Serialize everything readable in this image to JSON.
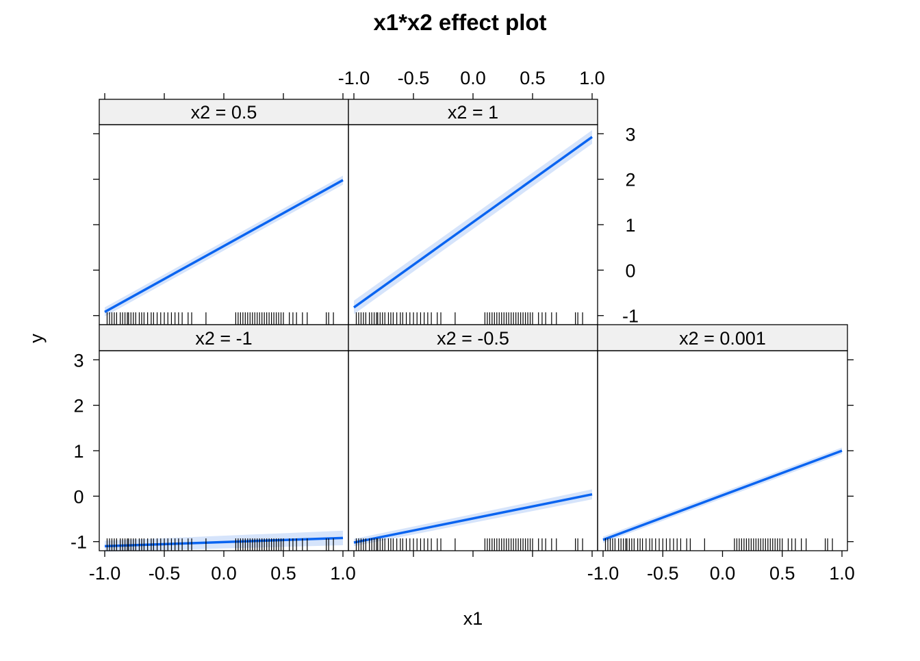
{
  "chart_data": {
    "type": "line",
    "title": "x1*x2 effect plot",
    "xlabel": "x1",
    "ylabel": "y",
    "xlim": [
      -1.0,
      1.0
    ],
    "ylim": [
      -1.2,
      3.2
    ],
    "x_ticks": [
      -1.0,
      -0.5,
      0.0,
      0.5,
      1.0
    ],
    "x_tick_labels": [
      "-1.0",
      "-0.5",
      "0.0",
      "0.5",
      "1.0"
    ],
    "y_ticks": [
      -1,
      0,
      1,
      2,
      3
    ],
    "y_tick_labels": [
      "-1",
      "0",
      "1",
      "2",
      "3"
    ],
    "line_color": "#0A64F0",
    "band_color": "#D6E4FB",
    "strip_color": "#F0F0F0",
    "rug_x": [
      -0.98,
      -0.96,
      -0.94,
      -0.92,
      -0.9,
      -0.87,
      -0.85,
      -0.83,
      -0.81,
      -0.8,
      -0.78,
      -0.76,
      -0.74,
      -0.71,
      -0.69,
      -0.67,
      -0.64,
      -0.61,
      -0.59,
      -0.56,
      -0.53,
      -0.5,
      -0.47,
      -0.44,
      -0.41,
      -0.38,
      -0.35,
      -0.3,
      -0.27,
      -0.15,
      0.1,
      0.12,
      0.14,
      0.16,
      0.18,
      0.2,
      0.22,
      0.24,
      0.26,
      0.28,
      0.3,
      0.32,
      0.34,
      0.36,
      0.38,
      0.4,
      0.42,
      0.44,
      0.46,
      0.48,
      0.5,
      0.55,
      0.58,
      0.61,
      0.66,
      0.7,
      0.86,
      0.88,
      0.92
    ],
    "panels": [
      {
        "strip": "x2 = 0.5",
        "x": [
          -1,
          1
        ],
        "y": [
          -0.92,
          1.98
        ],
        "lower": [
          -1.02,
          1.88
        ],
        "upper": [
          -0.82,
          2.08
        ]
      },
      {
        "strip": "x2 = 1",
        "x": [
          -1,
          1
        ],
        "y": [
          -0.82,
          2.93
        ],
        "lower": [
          -0.97,
          2.78
        ],
        "upper": [
          -0.67,
          3.08
        ]
      },
      {
        "strip": "x2 = -1",
        "x": [
          -1,
          1
        ],
        "y": [
          -1.1,
          -0.92
        ],
        "lower": [
          -1.22,
          -1.08
        ],
        "upper": [
          -0.98,
          -0.76
        ]
      },
      {
        "strip": "x2 = -0.5",
        "x": [
          -1,
          1
        ],
        "y": [
          -1.02,
          0.04
        ],
        "lower": [
          -1.1,
          -0.07
        ],
        "upper": [
          -0.94,
          0.15
        ]
      },
      {
        "strip": "x2 = 0.001",
        "x": [
          -1,
          1
        ],
        "y": [
          -0.96,
          1.0
        ],
        "lower": [
          -1.03,
          0.93
        ],
        "upper": [
          -0.89,
          1.07
        ]
      }
    ]
  }
}
